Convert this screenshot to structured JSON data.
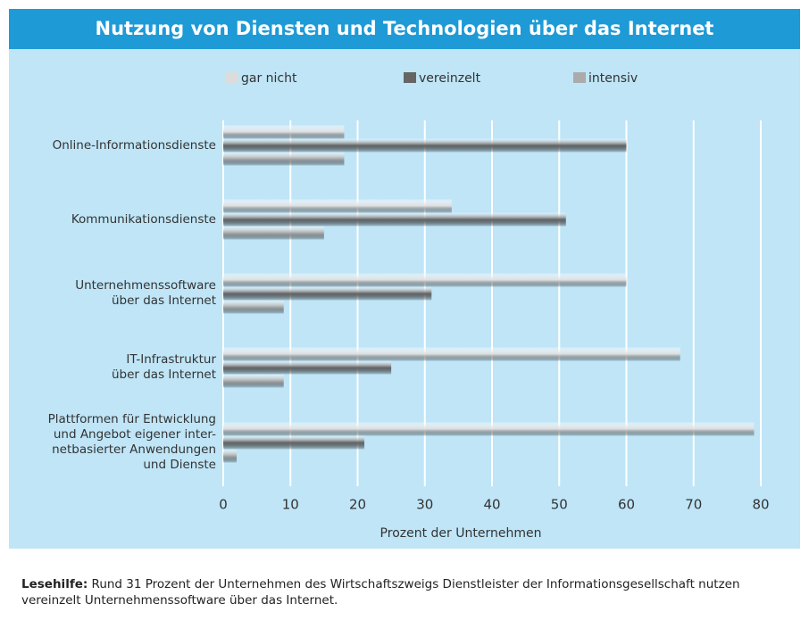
{
  "chart_data": {
    "type": "hbar",
    "title": "Nutzung von Diensten und Technologien über das Internet",
    "categories": [
      "Online-Informationsdienste",
      "Kommunikationsdienste",
      "Unternehmenssoftware\nüber das Internet",
      "IT-Infrastruktur\nüber das Internet",
      "Plattformen für Entwicklung\nund Angebot eigener inter-\nnetbasierter Anwendungen\nund Dienste"
    ],
    "series": [
      {
        "name": "gar nicht",
        "color": "#dcdcdc",
        "values": [
          18,
          34,
          60,
          68,
          79
        ]
      },
      {
        "name": "vereinzelt",
        "color": "#656565",
        "values": [
          60,
          51,
          31,
          25,
          21
        ]
      },
      {
        "name": "intensiv",
        "color": "#ababab",
        "values": [
          18,
          15,
          9,
          9,
          2
        ]
      }
    ],
    "xlim": [
      0,
      80
    ],
    "xticks": [
      0,
      10,
      20,
      30,
      40,
      50,
      60,
      70,
      80
    ],
    "grid": true,
    "xlabel": "Prozent der Unternehmen",
    "footnote": {
      "label": "Lesehilfe:",
      "text": "Rund 31 Prozent der Unternehmen des Wirtschaftszweigs Dienstleister der Informationsgesellschaft nutzen vereinzelt Unternehmenssoftware über das Internet."
    }
  }
}
